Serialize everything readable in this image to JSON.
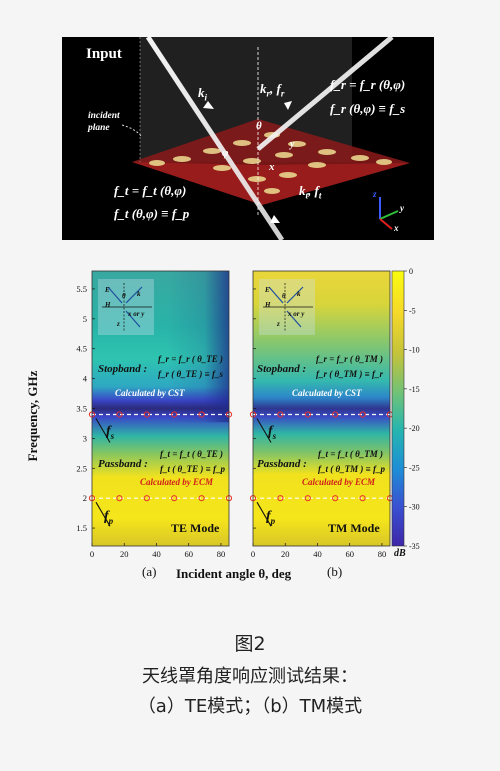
{
  "figure_label": "图2",
  "caption_line1": "天线罩角度响应测试结果：",
  "caption_line2": "（a）TE模式；（b）TM模式",
  "top_panel": {
    "input_label": "Input",
    "ki": "k",
    "ki_sub": "i",
    "kr": "k",
    "kr_sub": "r",
    "fr_tag": "f",
    "fr_tag_sub": "r",
    "incident_plane": "incident plane",
    "theta": "θ",
    "phi": "φ",
    "x_label": "x",
    "y_label": "y",
    "fr_eq1": "f_r = f_r (θ,φ)",
    "fr_eq2": "f_r (θ,φ) ≡ f_s",
    "ft_eq1": "f_t = f_t (θ,φ)",
    "ft_eq2": "f_t (θ,φ) ≡ f_p",
    "kt": "k",
    "kt_sub": "t",
    "ft_tag": "f",
    "ft_tag_sub": "t",
    "axis_z": "z",
    "axis_y": "y",
    "axis_x": "x"
  },
  "chart_data": {
    "type": "heatmap",
    "ylabel": "Frequency, GHz",
    "xlabel": "Incident angle θ, deg",
    "x_ticks": [
      0,
      20,
      40,
      60,
      80
    ],
    "y_ticks": [
      1.5,
      2,
      2.5,
      3,
      3.5,
      4,
      4.5,
      5,
      5.5
    ],
    "ylim": [
      1.2,
      5.8
    ],
    "xlim": [
      0,
      85
    ],
    "colorbar": {
      "ticks": [
        0,
        -5,
        -10,
        -15,
        -20,
        -25,
        -30,
        -35
      ],
      "unit": "dB",
      "range": [
        -35,
        0
      ]
    },
    "panels": [
      {
        "label": "(a)",
        "mode": "TE Mode",
        "stopband_label": "Stopband :",
        "stop_eq1": "f_r = f_r ( θ_TE )",
        "stop_eq2": "f_r ( θ_TE ) ≡ f_s",
        "passband_label": "Passband :",
        "pass_eq1": "f_t = f_t ( θ_TE )",
        "pass_eq2": "f_t ( θ_TE ) ≡ f_p",
        "cst_label": "Calculated by CST",
        "ecm_label": "Calculated by ECM",
        "fs_label": "f",
        "fs_sub": "s",
        "fp_label": "f",
        "fp_sub": "p",
        "inset_axis": "x or y",
        "inset_z": "z",
        "inset_theta": "θ",
        "inset_k": "k",
        "inset_E": "E",
        "inset_H": "H",
        "cst_freq": 3.4,
        "ecm_freq": 2.0,
        "ecm_points_x": [
          0,
          17,
          34,
          51,
          68,
          85
        ],
        "cst_points_x": [
          0,
          17,
          34,
          51,
          68,
          85
        ]
      },
      {
        "label": "(b)",
        "mode": "TM Mode",
        "stopband_label": "Stopband :",
        "stop_eq1": "f_r = f_r ( θ_TM )",
        "stop_eq2": "f_r ( θ_TM ) ≡ f_r",
        "passband_label": "Passband :",
        "pass_eq1": "f_t = f_t ( θ_TM )",
        "pass_eq2": "f_t ( θ_TM ) ≡ f_p",
        "cst_label": "Calculated by CST",
        "ecm_label": "Calculated by ECM",
        "fs_label": "f",
        "fs_sub": "s",
        "fp_label": "f",
        "fp_sub": "p",
        "inset_axis": "x or y",
        "inset_z": "z",
        "inset_theta": "θ",
        "inset_k": "k",
        "inset_E": "E",
        "inset_H": "H",
        "cst_freq": 3.4,
        "ecm_freq": 2.0,
        "ecm_points_x": [
          0,
          17,
          34,
          51,
          68,
          85
        ],
        "cst_points_x": [
          0,
          17,
          34,
          51,
          68,
          85
        ]
      }
    ]
  },
  "colors": {
    "yellow": "#f5e51b",
    "cyan": "#2ec4b0",
    "blue": "#3a46c8",
    "dark": "#2b2a7a",
    "marker": "#e8302a"
  }
}
